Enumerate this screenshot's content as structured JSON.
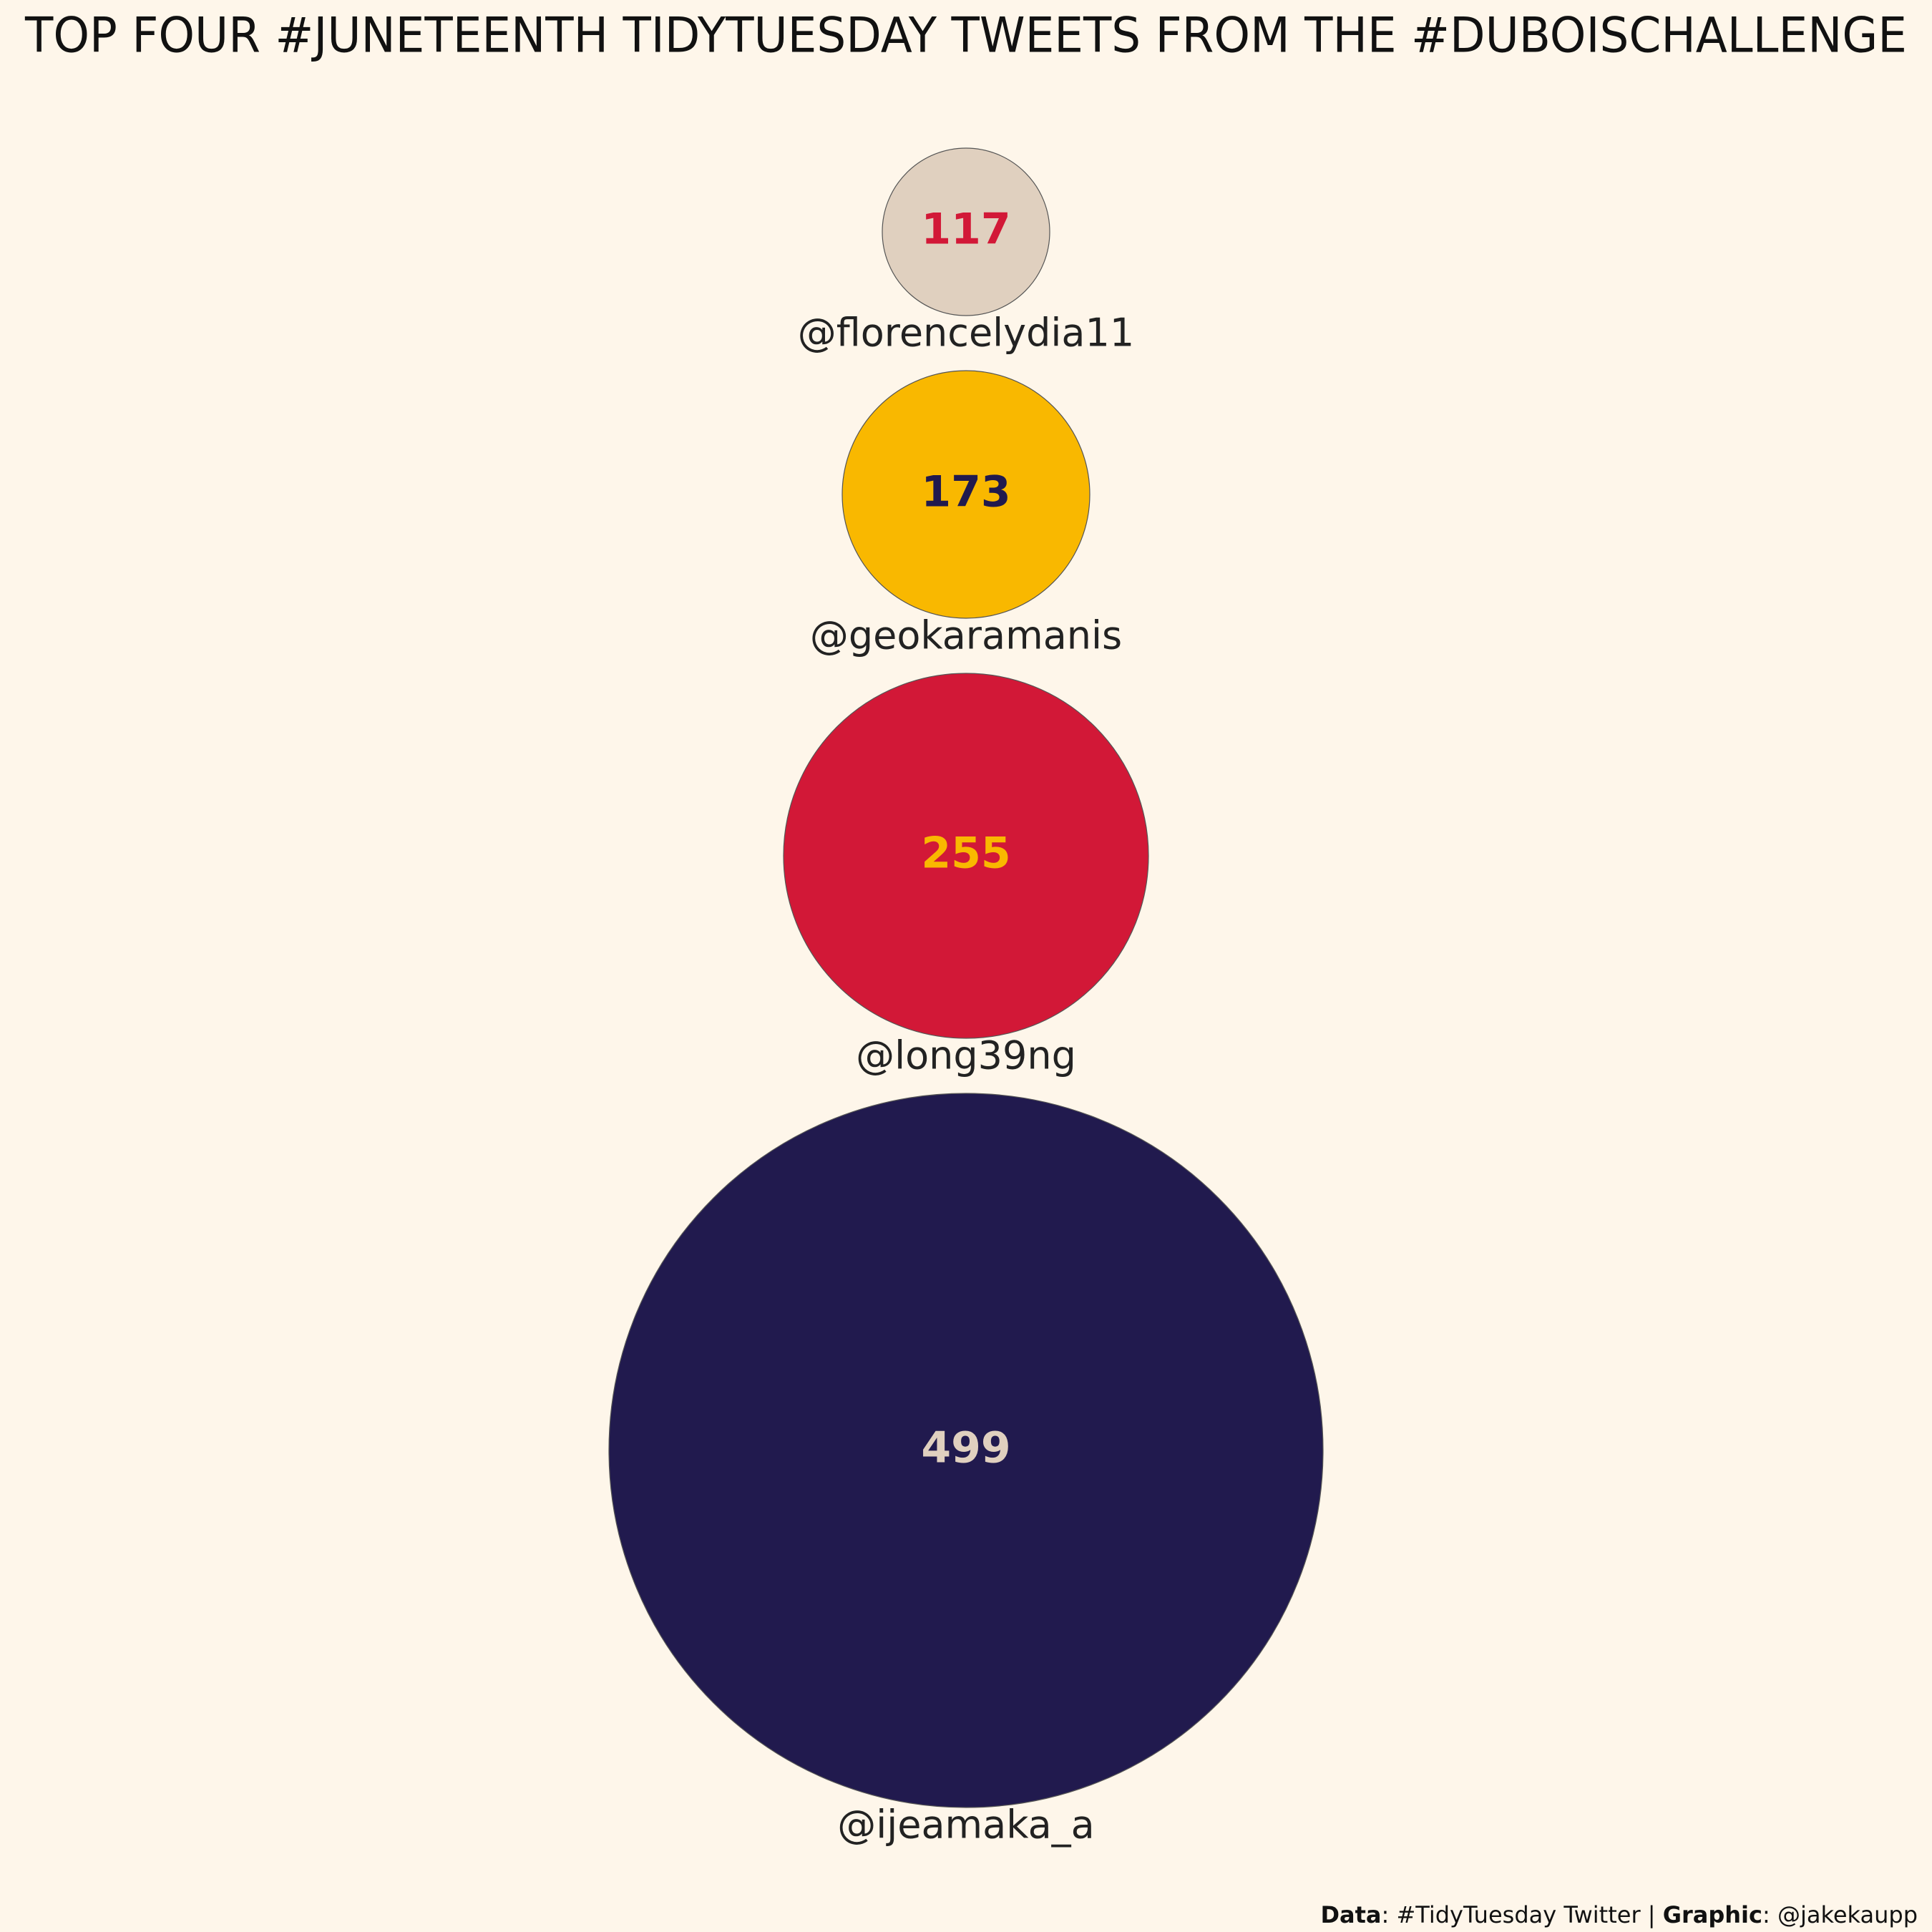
{
  "chart_data": {
    "type": "bubble",
    "title": "TOP FOUR #JUNETEENTH TIDYTUESDAY TWEETS FROM THE #DUBOISCHALLENGE",
    "categories": [
      "@florencelydia11",
      "@geokaramanis",
      "@long39ng",
      "@ijeamaka_a"
    ],
    "values": [
      117,
      173,
      255,
      499
    ],
    "colors": [
      "#e0d0bf",
      "#f9b800",
      "#d21837",
      "#211a4e"
    ],
    "value_label_colors": [
      "#d21837",
      "#211a4e",
      "#f9b800",
      "#e0d0bf"
    ],
    "caption": [
      "Data",
      ": #TidyTuesday Twitter | ",
      "Graphic",
      ": @jakekaupp"
    ]
  }
}
